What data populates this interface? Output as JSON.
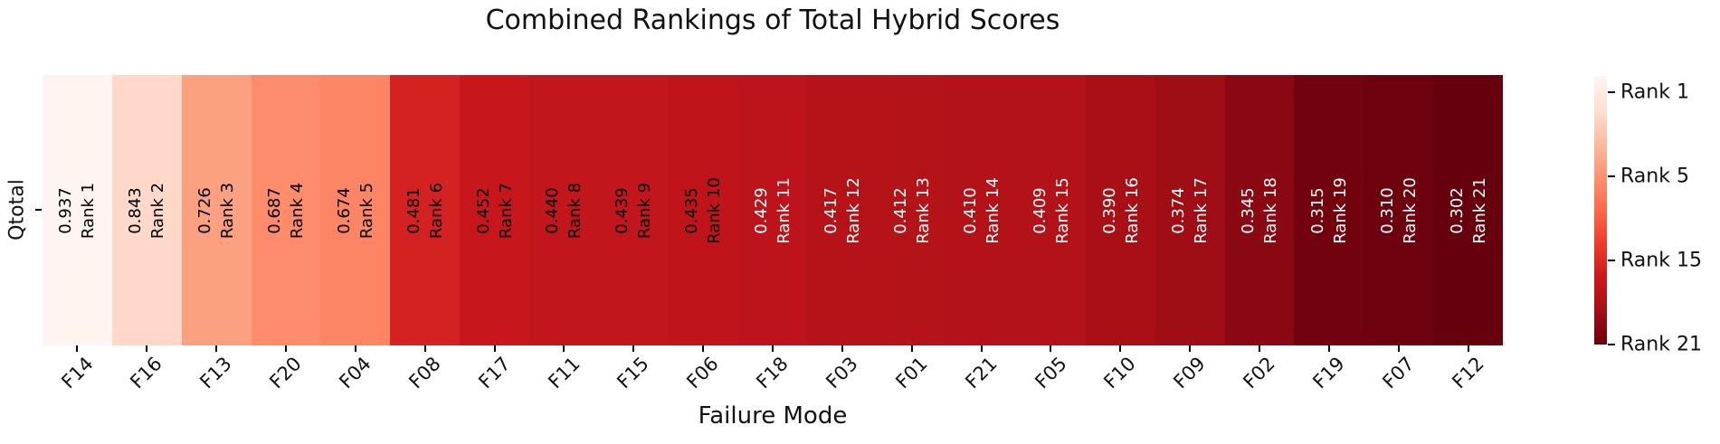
{
  "title": "Combined Rankings of Total Hybrid Scores",
  "xlabel": "Failure Mode",
  "ylabel": "Qtotal",
  "chart_data": {
    "type": "heatmap",
    "row_label": "Qtotal",
    "categories": [
      "F14",
      "F16",
      "F13",
      "F20",
      "F04",
      "F08",
      "F17",
      "F11",
      "F15",
      "F06",
      "F18",
      "F03",
      "F01",
      "F21",
      "F05",
      "F10",
      "F09",
      "F02",
      "F19",
      "F07",
      "F12"
    ],
    "scores": [
      0.937,
      0.843,
      0.726,
      0.687,
      0.674,
      0.481,
      0.452,
      0.44,
      0.439,
      0.435,
      0.429,
      0.417,
      0.412,
      0.41,
      0.409,
      0.39,
      0.374,
      0.345,
      0.315,
      0.31,
      0.302
    ],
    "score_labels": [
      "0.937",
      "0.843",
      "0.726",
      "0.687",
      "0.674",
      "0.481",
      "0.452",
      "0.440",
      "0.439",
      "0.435",
      "0.429",
      "0.417",
      "0.412",
      "0.410",
      "0.409",
      "0.390",
      "0.374",
      "0.345",
      "0.315",
      "0.310",
      "0.302"
    ],
    "rank_labels": [
      "Rank 1",
      "Rank 2",
      "Rank 3",
      "Rank 4",
      "Rank 5",
      "Rank 6",
      "Rank 7",
      "Rank 8",
      "Rank 9",
      "Rank 10",
      "Rank 11",
      "Rank 12",
      "Rank 13",
      "Rank 14",
      "Rank 15",
      "Rank 16",
      "Rank 17",
      "Rank 18",
      "Rank 19",
      "Rank 20",
      "Rank 21"
    ],
    "cell_colors": [
      "#fff5f0",
      "#fed9c9",
      "#fca082",
      "#fc8c6c",
      "#fc8565",
      "#d42121",
      "#c7171c",
      "#c1161b",
      "#c1161b",
      "#bf151a",
      "#bc141a",
      "#b61319",
      "#b41318",
      "#b31218",
      "#b31218",
      "#a91016",
      "#9f0e14",
      "#890811",
      "#71020e",
      "#6d020e",
      "#67000d"
    ],
    "cell_text_colors": [
      "#000000",
      "#000000",
      "#000000",
      "#000000",
      "#000000",
      "#000000",
      "#000000",
      "#000000",
      "#000000",
      "#000000",
      "#ffffff",
      "#ffffff",
      "#ffffff",
      "#ffffff",
      "#ffffff",
      "#ffffff",
      "#ffffff",
      "#ffffff",
      "#ffffff",
      "#ffffff",
      "#ffffff"
    ],
    "title": "Combined Rankings of Total Hybrid Scores",
    "xlabel": "Failure Mode",
    "ylabel": "Qtotal",
    "grid": false,
    "colormap": "Reds",
    "colorbar": {
      "position": "right",
      "gradient": [
        "#fff5f0",
        "#fee0d2",
        "#fcbba1",
        "#fc9272",
        "#fb6a4a",
        "#ef3b2c",
        "#cb181d",
        "#a50f15",
        "#67000d"
      ],
      "ticks": [
        {
          "label": "Rank 1",
          "pos": 0.061
        },
        {
          "label": "Rank 5",
          "pos": 0.373
        },
        {
          "label": "Rank 15",
          "pos": 0.688
        },
        {
          "label": "Rank 21",
          "pos": 1.0
        }
      ]
    }
  }
}
